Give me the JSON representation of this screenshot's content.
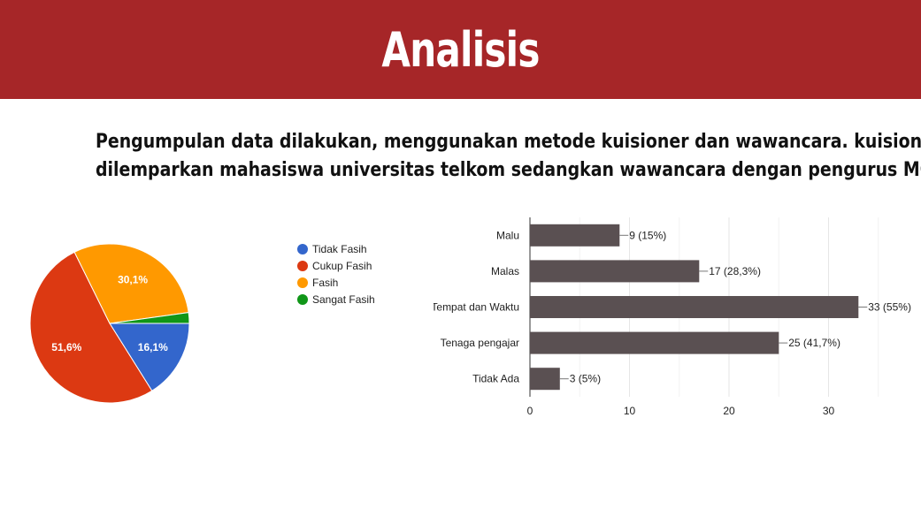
{
  "slide": {
    "title": "Analisis",
    "description_lines": [
      "Pengumpulan data dilakukan, menggunakan metode kuisioner dan wawancara. kuisioner",
      "dilemparkan mahasiswa universitas telkom sedangkan wawancara dengan pengurus MQ"
    ]
  },
  "colors": {
    "header": "#a62628",
    "pie": [
      "#3366cc",
      "#dc3912",
      "#ff9900",
      "#109618"
    ],
    "bar": "#5a5052"
  },
  "chart_data": [
    {
      "type": "pie",
      "title": "",
      "categories": [
        "Tidak Fasih",
        "Cukup Fasih",
        "Fasih",
        "Sangat Fasih"
      ],
      "values": [
        16.1,
        51.6,
        30.1,
        2.2
      ],
      "slice_labels": [
        "16,1%",
        "51,6%",
        "30,1%",
        ""
      ],
      "legend_position": "right"
    },
    {
      "type": "bar",
      "orientation": "horizontal",
      "title": "",
      "categories": [
        "Malu",
        "Malas",
        "Tempat dan Waktu",
        "Tenaga pengajar",
        "Tidak Ada"
      ],
      "values": [
        9,
        17,
        33,
        25,
        3
      ],
      "data_labels": [
        "9 (15%)",
        "17 (28,3%)",
        "33 (55%)",
        "25 (41,7%)",
        "3 (5%)"
      ],
      "xticks": [
        "0",
        "10",
        "20",
        "30"
      ],
      "xlim": [
        0,
        39
      ],
      "grid": true
    }
  ]
}
